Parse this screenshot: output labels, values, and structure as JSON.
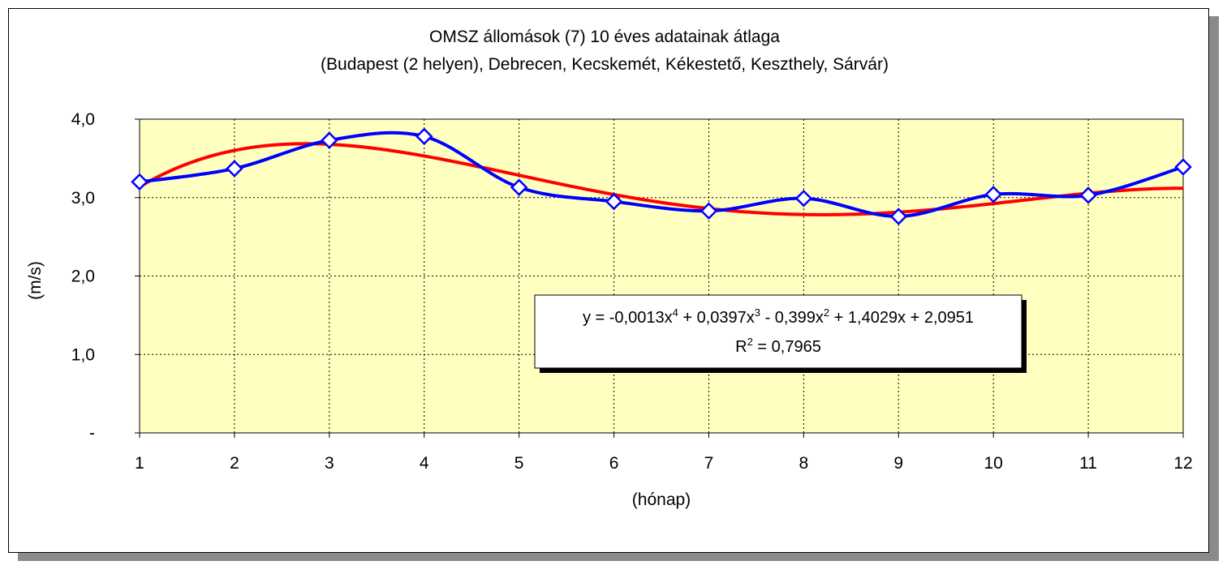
{
  "chart_data": {
    "type": "line",
    "title": "OMSZ állomások (7) 10 éves adatainak átlaga",
    "subtitle": "(Budapest (2 helyen), Debrecen, Kecskemét, Kékestető, Keszthely, Sárvár)",
    "xlabel": "(hónap)",
    "ylabel": "(m/s)",
    "categories": [
      "1",
      "2",
      "3",
      "4",
      "5",
      "6",
      "7",
      "8",
      "9",
      "10",
      "11",
      "12"
    ],
    "x": [
      1,
      2,
      3,
      4,
      5,
      6,
      7,
      8,
      9,
      10,
      11,
      12
    ],
    "xlim": [
      1,
      12
    ],
    "ylim": [
      0,
      4
    ],
    "yticks": [
      0,
      1,
      2,
      3,
      4
    ],
    "ytick_labels": [
      "-",
      "1,0",
      "2,0",
      "3,0",
      "4,0"
    ],
    "grid": true,
    "plot_background": "#ffffc0",
    "series": [
      {
        "values": [
          3.2,
          3.37,
          3.73,
          3.78,
          3.13,
          2.95,
          2.83,
          2.99,
          2.76,
          3.04,
          3.03,
          3.39
        ],
        "color": "#0000ff",
        "marker": "diamond",
        "smooth": true
      }
    ],
    "trendline": {
      "type": "polynomial",
      "order": 4,
      "coefficients": [
        -0.0013,
        0.0397,
        -0.399,
        1.4029,
        2.0951
      ],
      "color": "#ff0000",
      "equation_parts": [
        "y = -0,0013x",
        "4",
        " + 0,0397x",
        "3",
        " - 0,399x",
        "2",
        " + 1,4029x + 2,0951"
      ],
      "r2_parts": [
        "R",
        "2",
        " = 0,7965"
      ]
    }
  }
}
